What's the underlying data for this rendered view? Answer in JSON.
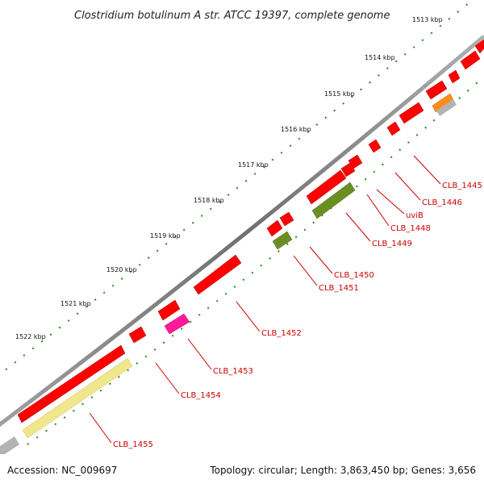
{
  "title": "Clostridium botulinum A str. ATCC 19397, complete genome",
  "footer": {
    "accession": "Accession: NC_009697",
    "summary": "Topology: circular; Length: 3,863,450 bp; Genes: 3,656"
  },
  "colors": {
    "backbone": "#808080",
    "tick": "#1a8c1a",
    "label": "#cc0000",
    "cds": "#ff0000",
    "gene_types": [
      "#ff0000",
      "#ff8c1a",
      "#b3b3b3",
      "#6b8e23",
      "#ff1a99",
      "#f0e68c"
    ]
  },
  "ticks": [
    {
      "label": "1513 kbp"
    },
    {
      "label": "1514 kbp"
    },
    {
      "label": "1515 kbp"
    },
    {
      "label": "1516 kbp"
    },
    {
      "label": "1517 kbp"
    },
    {
      "label": "1518 kbp"
    },
    {
      "label": "1519 kbp"
    },
    {
      "label": "1520 kbp"
    },
    {
      "label": "1521 kbp"
    },
    {
      "label": "1522 kbp"
    }
  ],
  "gene_labels": [
    {
      "text": "CLB_1445"
    },
    {
      "text": "CLB_1446"
    },
    {
      "text": "uviB"
    },
    {
      "text": "CLB_1448"
    },
    {
      "text": "CLB_1449"
    },
    {
      "text": "CLB_1450"
    },
    {
      "text": "CLB_1451"
    },
    {
      "text": "CLB_1452"
    },
    {
      "text": "CLB_1453"
    },
    {
      "text": "CLB_1454"
    },
    {
      "text": "CLB_1455"
    }
  ]
}
